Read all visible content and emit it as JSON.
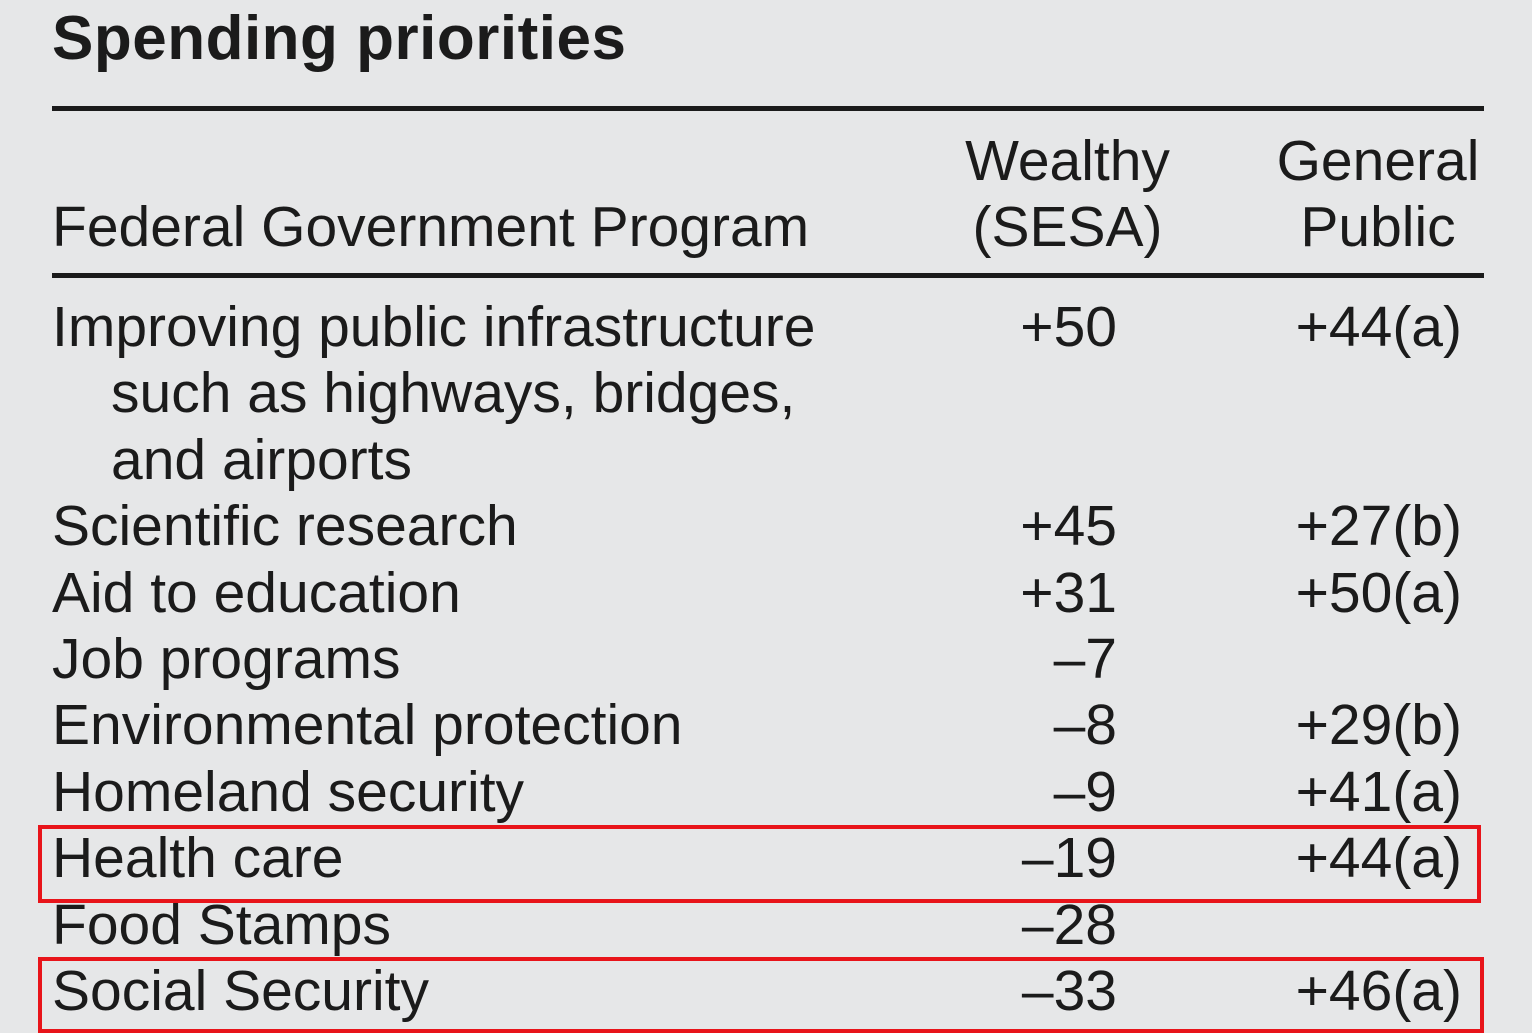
{
  "title": "Spending priorities",
  "headers": {
    "program": "Federal Government Program",
    "wealthy_line1": "Wealthy",
    "wealthy_line2": "(SESA)",
    "public_line1": "General",
    "public_line2": "Public"
  },
  "rows": [
    {
      "name_lines": [
        "Improving public infrastructure",
        "such as highways, bridges,",
        "and airports"
      ],
      "wealthy": "+50",
      "public": "+44(a)"
    },
    {
      "name": "Scientific research",
      "wealthy": "+45",
      "public": "+27(b)"
    },
    {
      "name": "Aid to education",
      "wealthy": "+31",
      "public": "+50(a)"
    },
    {
      "name": "Job programs",
      "wealthy": "–7",
      "public": ""
    },
    {
      "name": "Environmental protection",
      "wealthy": "–8",
      "public": "+29(b)"
    },
    {
      "name": "Homeland security",
      "wealthy": "–9",
      "public": "+41(a)"
    },
    {
      "name": "Health care",
      "wealthy": "–19",
      "public": "+44(a)",
      "highlighted": true
    },
    {
      "name": "Food Stamps",
      "wealthy": "–28",
      "public": ""
    },
    {
      "name": "Social Security",
      "wealthy": "–33",
      "public": "+46(a)",
      "highlighted": true
    }
  ],
  "colors": {
    "background": "#e6e7e8",
    "text": "#1b1b1b",
    "highlight": "#e8141a"
  }
}
